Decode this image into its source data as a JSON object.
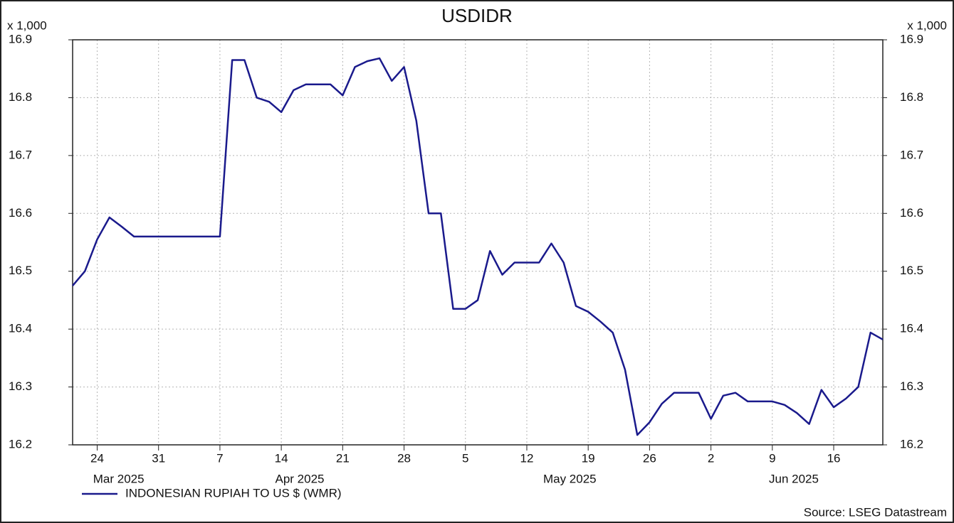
{
  "chart_data": {
    "type": "line",
    "title": "USDIDR",
    "ylabel": "x 1,000",
    "y2label": "x 1,000",
    "x": [
      "2025-03-20",
      "2025-03-21",
      "2025-03-24",
      "2025-03-25",
      "2025-03-26",
      "2025-03-27",
      "2025-03-28",
      "2025-03-31",
      "2025-04-01",
      "2025-04-02",
      "2025-04-03",
      "2025-04-04",
      "2025-04-07",
      "2025-04-08",
      "2025-04-09",
      "2025-04-10",
      "2025-04-11",
      "2025-04-14",
      "2025-04-15",
      "2025-04-16",
      "2025-04-17",
      "2025-04-18",
      "2025-04-21",
      "2025-04-22",
      "2025-04-23",
      "2025-04-24",
      "2025-04-25",
      "2025-04-28",
      "2025-04-29",
      "2025-04-30",
      "2025-05-01",
      "2025-05-02",
      "2025-05-05",
      "2025-05-06",
      "2025-05-07",
      "2025-05-08",
      "2025-05-09",
      "2025-05-12",
      "2025-05-13",
      "2025-05-14",
      "2025-05-15",
      "2025-05-16",
      "2025-05-19",
      "2025-05-20",
      "2025-05-21",
      "2025-05-22",
      "2025-05-23",
      "2025-05-26",
      "2025-05-27",
      "2025-05-28",
      "2025-05-29",
      "2025-05-30",
      "2025-06-02",
      "2025-06-03",
      "2025-06-04",
      "2025-06-05",
      "2025-06-06",
      "2025-06-09",
      "2025-06-10",
      "2025-06-11",
      "2025-06-12",
      "2025-06-13",
      "2025-06-16",
      "2025-06-17",
      "2025-06-18",
      "2025-06-19",
      "2025-06-20"
    ],
    "series": [
      {
        "name": "INDONESIAN RUPIAH TO US $ (WMR)",
        "color": "#1a1a8c",
        "values": [
          16.475,
          16.5,
          16.555,
          16.593,
          16.577,
          16.56,
          16.56,
          16.56,
          16.56,
          16.56,
          16.56,
          16.56,
          16.56,
          16.865,
          16.865,
          16.8,
          16.793,
          16.775,
          16.813,
          16.823,
          16.823,
          16.823,
          16.804,
          16.853,
          16.863,
          16.868,
          16.829,
          16.853,
          16.76,
          16.6,
          16.6,
          16.435,
          16.435,
          16.45,
          16.535,
          16.494,
          16.515,
          16.515,
          16.515,
          16.548,
          16.515,
          16.44,
          16.43,
          16.413,
          16.394,
          16.33,
          16.217,
          16.239,
          16.271,
          16.29,
          16.29,
          16.29,
          16.245,
          16.285,
          16.29,
          16.275,
          16.275,
          16.275,
          16.269,
          16.255,
          16.236,
          16.295,
          16.265,
          16.28,
          16.3,
          16.394,
          16.382
        ]
      }
    ],
    "xticks": [
      {
        "value": "2025-03-24",
        "label": "24"
      },
      {
        "value": "2025-03-31",
        "label": "31"
      },
      {
        "value": "2025-04-07",
        "label": "7"
      },
      {
        "value": "2025-04-14",
        "label": "14"
      },
      {
        "value": "2025-04-21",
        "label": "21"
      },
      {
        "value": "2025-04-28",
        "label": "28"
      },
      {
        "value": "2025-05-05",
        "label": "5"
      },
      {
        "value": "2025-05-12",
        "label": "12"
      },
      {
        "value": "2025-05-19",
        "label": "19"
      },
      {
        "value": "2025-05-26",
        "label": "26"
      },
      {
        "value": "2025-06-02",
        "label": "2"
      },
      {
        "value": "2025-06-09",
        "label": "9"
      },
      {
        "value": "2025-06-16",
        "label": "16"
      }
    ],
    "month_labels": [
      "Mar 2025",
      "Apr 2025",
      "May 2025",
      "Jun 2025"
    ],
    "ylim": [
      16.2,
      16.9
    ],
    "yticks": [
      16.2,
      16.3,
      16.4,
      16.5,
      16.6,
      16.7,
      16.8,
      16.9
    ],
    "y2lim": [
      16.2,
      16.9
    ],
    "y2ticks": [
      16.2,
      16.3,
      16.4,
      16.5,
      16.6,
      16.7,
      16.8,
      16.9
    ],
    "grid": true,
    "source": "Source: LSEG Datastream"
  }
}
